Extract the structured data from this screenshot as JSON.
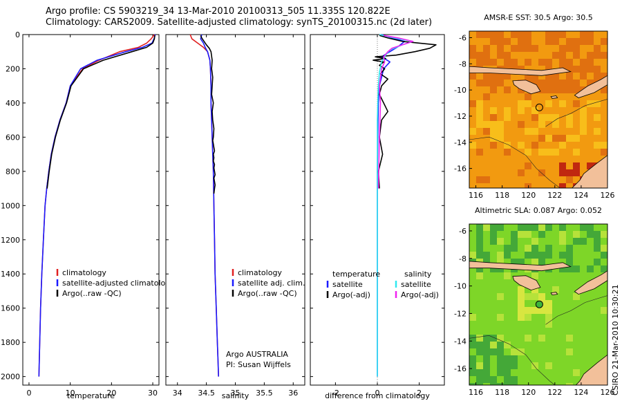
{
  "header": {
    "line1": "Argo profile: CS 5903219_34 13-Mar-2010 20100313_505 11.335S 120.822E",
    "line2": "Climatology: CARS2009. Satellite-adjusted climatology: synTS_20100315.nc (2d later)"
  },
  "footer": {
    "credit": "CSIRO 21-Mar-2010 10:30:21"
  },
  "colors": {
    "red": "#e02020",
    "blue": "#1a1aff",
    "black": "#000000",
    "cyan": "#30e8f0",
    "magenta": "#f020f0"
  },
  "chart_data": [
    {
      "type": "line",
      "id": "temperature",
      "xlabel": "temperature",
      "ylabel": "",
      "xlim": [
        -1.5,
        31.5
      ],
      "ylim": [
        2050,
        0
      ],
      "xticks": [
        0,
        10,
        20,
        30
      ],
      "yticks": [
        0,
        200,
        400,
        600,
        800,
        1000,
        1200,
        1400,
        1600,
        1800,
        2000
      ],
      "legend": {
        "position": "bottom-right",
        "entries": [
          {
            "label": "climatology",
            "color": "#e02020"
          },
          {
            "label": "satellite-adjusted climatology",
            "color": "#1a1aff"
          },
          {
            "label": "Argo(..raw -QC)",
            "color": "#000000"
          }
        ]
      },
      "series": [
        {
          "name": "climatology",
          "color": "#e02020",
          "x": [
            30.4,
            29.6,
            28.5,
            26.5,
            22.0,
            17.0,
            13.0,
            10.0,
            9.0,
            7.5,
            6.3,
            5.4,
            4.8,
            4.3,
            3.9,
            3.5,
            3.1,
            2.8,
            2.6,
            2.5,
            2.4
          ],
          "y": [
            0,
            25,
            50,
            75,
            100,
            150,
            200,
            300,
            400,
            500,
            600,
            700,
            800,
            900,
            1000,
            1200,
            1400,
            1600,
            1800,
            1900,
            2000
          ]
        },
        {
          "name": "satellite-adjusted climatology",
          "color": "#1a1aff",
          "x": [
            30.6,
            30.3,
            29.8,
            27.5,
            23.5,
            16.5,
            12.5,
            10.0,
            9.0,
            7.5,
            6.3,
            5.4,
            4.8,
            4.3,
            3.9,
            3.5,
            3.1,
            2.8,
            2.6,
            2.5,
            2.4
          ],
          "y": [
            0,
            25,
            50,
            75,
            100,
            150,
            200,
            300,
            400,
            500,
            600,
            700,
            800,
            900,
            1000,
            1200,
            1400,
            1600,
            1800,
            1900,
            2000
          ]
        },
        {
          "name": "Argo(..raw -QC)",
          "color": "#000000",
          "x": [
            30.5,
            30.4,
            30.0,
            28.5,
            25.0,
            18.0,
            13.2,
            10.2,
            9.1,
            7.6,
            6.4,
            5.5,
            4.9,
            4.4
          ],
          "y": [
            5,
            25,
            50,
            75,
            100,
            150,
            200,
            300,
            400,
            500,
            600,
            700,
            800,
            900
          ]
        }
      ]
    },
    {
      "type": "line",
      "id": "salinity",
      "xlabel": "salinity",
      "xlim": [
        33.8,
        36.2
      ],
      "ylim": [
        2050,
        0
      ],
      "xticks": [
        34,
        34.5,
        35,
        35.5,
        36
      ],
      "xtick_labels": [
        "34",
        "34.5",
        "35",
        "35.5",
        "36"
      ],
      "yticks": [
        0,
        200,
        400,
        600,
        800,
        1000,
        1200,
        1400,
        1600,
        1800,
        2000
      ],
      "legend": {
        "position": "bottom-right",
        "entries": [
          {
            "label": "climatology",
            "color": "#e02020"
          },
          {
            "label": "satellite adj. clim.",
            "color": "#1a1aff"
          },
          {
            "label": "Argo(..raw -QC)",
            "color": "#000000"
          }
        ]
      },
      "annotation": [
        "Argo AUSTRALIA",
        "PI: Susan Wijffels"
      ],
      "series": [
        {
          "name": "climatology",
          "color": "#e02020",
          "x": [
            34.22,
            34.25,
            34.35,
            34.45,
            34.52,
            34.56,
            34.57,
            34.58,
            34.58,
            34.59,
            34.6,
            34.61,
            34.62,
            34.63,
            34.64,
            34.65,
            34.67,
            34.69,
            34.7,
            34.71
          ],
          "y": [
            0,
            25,
            50,
            75,
            100,
            150,
            200,
            300,
            400,
            500,
            600,
            700,
            800,
            1000,
            1200,
            1400,
            1600,
            1800,
            1900,
            2000
          ]
        },
        {
          "name": "satellite adj. clim.",
          "color": "#1a1aff",
          "x": [
            34.42,
            34.4,
            34.45,
            34.48,
            34.52,
            34.56,
            34.57,
            34.58,
            34.58,
            34.59,
            34.6,
            34.61,
            34.62,
            34.63,
            34.64,
            34.65,
            34.67,
            34.69,
            34.7,
            34.71
          ],
          "y": [
            0,
            25,
            50,
            75,
            100,
            150,
            200,
            300,
            400,
            500,
            600,
            700,
            800,
            1000,
            1200,
            1400,
            1600,
            1800,
            1900,
            2000
          ]
        },
        {
          "name": "Argo(..raw -QC)",
          "color": "#000000",
          "x": [
            34.4,
            34.42,
            34.46,
            34.5,
            34.55,
            34.58,
            34.6,
            34.59,
            34.61,
            34.6,
            34.59,
            34.62,
            34.6,
            34.61,
            34.63,
            34.62,
            34.61,
            34.62,
            34.63,
            34.64,
            34.62,
            34.63,
            34.62,
            34.64,
            34.63,
            34.64,
            34.65,
            34.63,
            34.64,
            34.65,
            34.64,
            34.63
          ],
          "y": [
            5,
            20,
            40,
            60,
            80,
            100,
            150,
            200,
            250,
            300,
            350,
            400,
            450,
            500,
            550,
            600,
            620,
            640,
            660,
            680,
            700,
            720,
            740,
            760,
            780,
            800,
            820,
            840,
            860,
            880,
            900,
            930
          ]
        }
      ]
    },
    {
      "type": "line",
      "id": "difference",
      "xlabel": "difference from climatology",
      "xlim": [
        -3.2,
        3.2
      ],
      "ylim": [
        2050,
        0
      ],
      "xticks": [
        -2,
        0,
        2
      ],
      "yticks": [
        0,
        200,
        400,
        600,
        800,
        1000,
        1200,
        1400,
        1600,
        1800,
        2000
      ],
      "legend": {
        "position": "bottom-right",
        "entries": [
          {
            "group": "temperature",
            "label": "satellite",
            "color": "#1a1aff"
          },
          {
            "group": "temperature",
            "label": "Argo(-adj)",
            "color": "#000000"
          },
          {
            "group": "salinity",
            "label": "satellite",
            "color": "#30e8f0"
          },
          {
            "group": "salinity",
            "label": "Argo(-adj)",
            "color": "#f020f0"
          }
        ]
      },
      "legend_headers": [
        "temperature",
        "salinity"
      ],
      "series": [
        {
          "name": "temperature satellite",
          "color": "#1a1aff",
          "x": [
            0.2,
            0.7,
            1.3,
            1.0,
            0.6,
            0.2,
            0.6,
            0.3,
            0.1,
            0.05,
            0.02,
            0.0,
            0.0,
            0.0,
            0.0,
            0.0
          ],
          "y": [
            0,
            20,
            40,
            70,
            100,
            130,
            160,
            200,
            300,
            400,
            600,
            800,
            1000,
            1400,
            1800,
            2000
          ]
        },
        {
          "name": "temperature Argo(-adj)",
          "color": "#000000",
          "x": [
            0.1,
            0.5,
            1.2,
            2.8,
            2.5,
            1.8,
            0.9,
            -0.1,
            0.4,
            -0.2,
            0.3,
            0.1,
            0.35,
            0.15,
            0.5,
            0.2,
            0.1,
            0.3,
            0.5,
            0.2,
            0.1,
            0.25,
            0.05,
            0.1
          ],
          "y": [
            5,
            20,
            40,
            60,
            80,
            100,
            120,
            130,
            140,
            150,
            160,
            180,
            200,
            230,
            260,
            300,
            350,
            400,
            450,
            500,
            600,
            700,
            800,
            900
          ]
        },
        {
          "name": "salinity satellite",
          "color": "#30e8f0",
          "x": [
            0.1,
            0.8,
            1.7,
            1.2,
            0.6,
            0.4,
            0.2,
            0.1,
            0.05,
            0.02,
            0.0,
            0.0,
            0.0,
            0.0,
            0.0
          ],
          "y": [
            0,
            20,
            40,
            60,
            90,
            120,
            160,
            220,
            300,
            400,
            500,
            800,
            1200,
            1600,
            2000
          ]
        },
        {
          "name": "salinity Argo(-adj)",
          "color": "#f020f0",
          "x": [
            0.3,
            1.0,
            1.7,
            1.2,
            0.7,
            0.5,
            0.3,
            0.35,
            0.2,
            0.15,
            0.1,
            0.15,
            0.1,
            0.05
          ],
          "y": [
            5,
            20,
            40,
            60,
            80,
            100,
            130,
            160,
            200,
            250,
            300,
            400,
            600,
            900
          ]
        }
      ]
    },
    {
      "type": "heatmap",
      "id": "sst_map",
      "title": "AMSR-E SST: 30.5 Argo: 30.5",
      "xlim": [
        115.5,
        126
      ],
      "ylim": [
        -17.5,
        -5.5
      ],
      "xticks": [
        116,
        118,
        120,
        122,
        124,
        126
      ],
      "yticks": [
        -6,
        -8,
        -10,
        -12,
        -14,
        -16
      ],
      "marker": {
        "lon": 120.822,
        "lat": -11.335
      },
      "colors": {
        "base": "#f29a10",
        "warm": "#e07010",
        "cool": "#f8be1a",
        "hot": "#c02810",
        "land": "#f2c09a"
      }
    },
    {
      "type": "heatmap",
      "id": "sla_map",
      "title": "Altimetric SLA: 0.087 Argo: 0.052",
      "xlim": [
        115.5,
        126
      ],
      "ylim": [
        -17.2,
        -5.5
      ],
      "xticks": [
        116,
        118,
        120,
        122,
        124,
        126
      ],
      "yticks": [
        -6,
        -8,
        -10,
        -12,
        -14,
        -16
      ],
      "marker": {
        "lon": 120.822,
        "lat": -11.335
      },
      "colors": {
        "base": "#7ed628",
        "light": "#b6e23a",
        "dark": "#44a838",
        "yellow": "#d8e640",
        "land": "#f2c09a"
      }
    }
  ]
}
